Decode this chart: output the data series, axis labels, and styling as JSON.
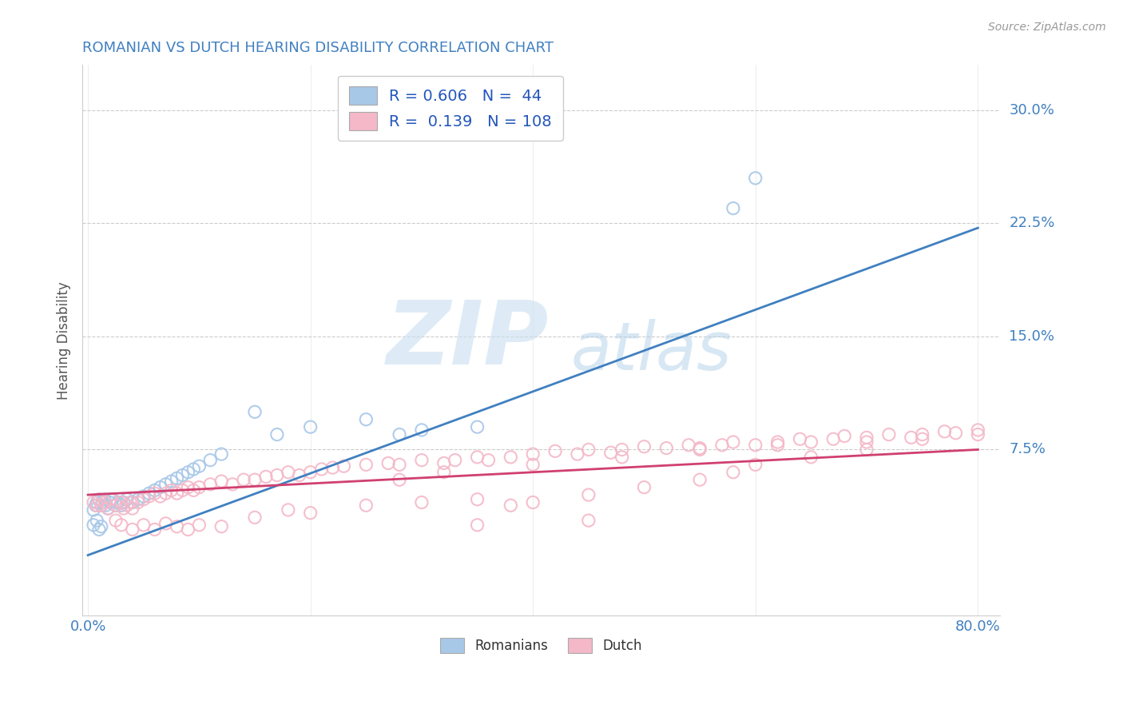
{
  "title": "ROMANIAN VS DUTCH HEARING DISABILITY CORRELATION CHART",
  "source": "Source: ZipAtlas.com",
  "ylabel": "Hearing Disability",
  "ytick_labels": [
    "30.0%",
    "22.5%",
    "15.0%",
    "7.5%"
  ],
  "ytick_values": [
    0.3,
    0.225,
    0.15,
    0.075
  ],
  "xlim": [
    -0.005,
    0.82
  ],
  "ylim": [
    -0.035,
    0.33
  ],
  "blue_scatter_color": "#a8c8e8",
  "pink_scatter_color": "#f4b8c8",
  "blue_line_color": "#4080c0",
  "pink_line_color": "#d04070",
  "title_color": "#4080c0",
  "axis_label_color": "#4080c0",
  "background_color": "#ffffff",
  "grid_color": "#cccccc",
  "blue_line_x": [
    0.0,
    0.8
  ],
  "blue_line_y": [
    0.005,
    0.222
  ],
  "pink_line_x": [
    0.0,
    0.8
  ],
  "pink_line_y": [
    0.045,
    0.075
  ],
  "romanians_x": [
    0.005,
    0.007,
    0.008,
    0.01,
    0.012,
    0.013,
    0.015,
    0.016,
    0.018,
    0.02,
    0.022,
    0.025,
    0.027,
    0.03,
    0.032,
    0.035,
    0.04,
    0.045,
    0.05,
    0.055,
    0.06,
    0.065,
    0.07,
    0.075,
    0.08,
    0.085,
    0.09,
    0.095,
    0.1,
    0.11,
    0.12,
    0.15,
    0.17,
    0.2,
    0.25,
    0.28,
    0.3,
    0.35,
    0.58,
    0.6,
    0.005,
    0.008,
    0.01,
    0.012
  ],
  "romanians_y": [
    0.035,
    0.038,
    0.04,
    0.042,
    0.038,
    0.04,
    0.042,
    0.038,
    0.036,
    0.04,
    0.042,
    0.038,
    0.04,
    0.038,
    0.04,
    0.042,
    0.04,
    0.042,
    0.044,
    0.046,
    0.048,
    0.05,
    0.052,
    0.054,
    0.056,
    0.058,
    0.06,
    0.062,
    0.064,
    0.068,
    0.072,
    0.1,
    0.085,
    0.09,
    0.095,
    0.085,
    0.088,
    0.09,
    0.235,
    0.255,
    0.025,
    0.028,
    0.022,
    0.024
  ],
  "dutch_x": [
    0.005,
    0.008,
    0.01,
    0.012,
    0.015,
    0.018,
    0.02,
    0.025,
    0.03,
    0.032,
    0.035,
    0.038,
    0.04,
    0.045,
    0.05,
    0.055,
    0.06,
    0.065,
    0.07,
    0.075,
    0.08,
    0.085,
    0.09,
    0.095,
    0.1,
    0.11,
    0.12,
    0.13,
    0.14,
    0.15,
    0.16,
    0.17,
    0.18,
    0.19,
    0.2,
    0.21,
    0.22,
    0.23,
    0.25,
    0.27,
    0.28,
    0.3,
    0.32,
    0.33,
    0.35,
    0.36,
    0.38,
    0.4,
    0.42,
    0.44,
    0.45,
    0.47,
    0.48,
    0.5,
    0.52,
    0.54,
    0.55,
    0.57,
    0.58,
    0.6,
    0.62,
    0.64,
    0.65,
    0.67,
    0.68,
    0.7,
    0.72,
    0.74,
    0.75,
    0.77,
    0.78,
    0.8,
    0.025,
    0.03,
    0.04,
    0.05,
    0.06,
    0.07,
    0.08,
    0.09,
    0.1,
    0.12,
    0.15,
    0.18,
    0.2,
    0.25,
    0.3,
    0.35,
    0.38,
    0.4,
    0.45,
    0.5,
    0.55,
    0.58,
    0.6,
    0.65,
    0.7,
    0.28,
    0.32,
    0.4,
    0.48,
    0.55,
    0.62,
    0.7,
    0.75,
    0.8,
    0.35,
    0.45
  ],
  "dutch_y": [
    0.04,
    0.038,
    0.042,
    0.038,
    0.04,
    0.036,
    0.042,
    0.038,
    0.04,
    0.036,
    0.038,
    0.04,
    0.036,
    0.04,
    0.042,
    0.044,
    0.046,
    0.044,
    0.046,
    0.048,
    0.046,
    0.048,
    0.05,
    0.048,
    0.05,
    0.052,
    0.054,
    0.052,
    0.055,
    0.055,
    0.057,
    0.058,
    0.06,
    0.058,
    0.06,
    0.062,
    0.063,
    0.064,
    0.065,
    0.066,
    0.065,
    0.068,
    0.066,
    0.068,
    0.07,
    0.068,
    0.07,
    0.072,
    0.074,
    0.072,
    0.075,
    0.073,
    0.075,
    0.077,
    0.076,
    0.078,
    0.076,
    0.078,
    0.08,
    0.078,
    0.08,
    0.082,
    0.08,
    0.082,
    0.084,
    0.083,
    0.085,
    0.083,
    0.085,
    0.087,
    0.086,
    0.088,
    0.028,
    0.025,
    0.022,
    0.025,
    0.022,
    0.026,
    0.024,
    0.022,
    0.025,
    0.024,
    0.03,
    0.035,
    0.033,
    0.038,
    0.04,
    0.042,
    0.038,
    0.04,
    0.045,
    0.05,
    0.055,
    0.06,
    0.065,
    0.07,
    0.075,
    0.055,
    0.06,
    0.065,
    0.07,
    0.075,
    0.078,
    0.08,
    0.082,
    0.085,
    0.025,
    0.028
  ]
}
